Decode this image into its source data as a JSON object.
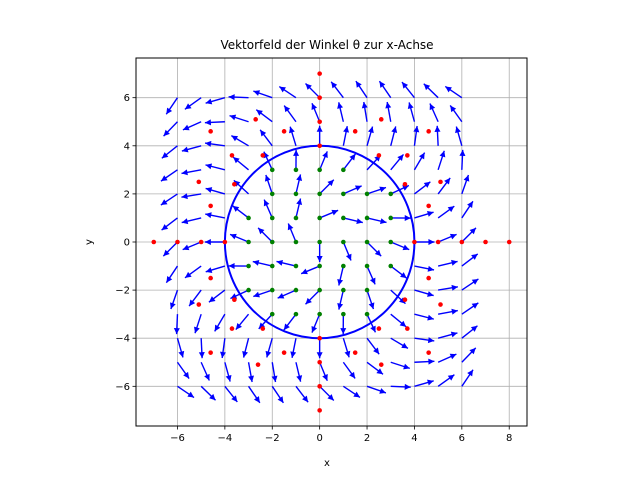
{
  "chart_data": {
    "type": "quiver",
    "title": "Vektorfeld der Winkel θ zur x-Achse",
    "xlabel": "x",
    "ylabel": "y",
    "xlim": [
      -7.75,
      8.75
    ],
    "ylim": [
      -7.65,
      7.65
    ],
    "xticks": [
      -6,
      -4,
      -2,
      0,
      2,
      4,
      6,
      8
    ],
    "yticks": [
      -6,
      -4,
      -2,
      0,
      2,
      4,
      6
    ],
    "grid": true,
    "colors": {
      "arrows": "#0000ff",
      "circle": "#0000ff",
      "inner_points": "#008000",
      "outer_points": "#ff0000",
      "grid": "#b0b0b0"
    },
    "vector_field": {
      "description_formula": "theta(x,y) = atan2(y,x) - pi/2*(1 - r/4)",
      "x_grid": [
        -6,
        -5,
        -4,
        -3,
        -2,
        -1,
        0,
        1,
        2,
        3,
        4,
        5,
        6
      ],
      "y_grid": [
        -6,
        -5,
        -4,
        -3,
        -2,
        -1,
        0,
        1,
        2,
        3,
        4,
        5,
        6
      ],
      "circle_radius": 4
    },
    "inner_points": [
      [
        0,
        0
      ],
      [
        1,
        0
      ],
      [
        2,
        0
      ],
      [
        3,
        0
      ],
      [
        -1,
        0
      ],
      [
        -2,
        0
      ],
      [
        -3,
        0
      ],
      [
        0,
        1
      ],
      [
        0,
        2
      ],
      [
        0,
        3
      ],
      [
        0,
        -1
      ],
      [
        0,
        -2
      ],
      [
        0,
        -3
      ],
      [
        1,
        1
      ],
      [
        2,
        1
      ],
      [
        3,
        1
      ],
      [
        -1,
        1
      ],
      [
        -2,
        1
      ],
      [
        -3,
        1
      ],
      [
        1,
        2
      ],
      [
        2,
        2
      ],
      [
        3,
        2
      ],
      [
        -1,
        2
      ],
      [
        -2,
        2
      ],
      [
        1,
        3
      ],
      [
        -1,
        3
      ],
      [
        -2,
        3
      ],
      [
        1,
        -1
      ],
      [
        2,
        -1
      ],
      [
        3,
        -1
      ],
      [
        -1,
        -1
      ],
      [
        -2,
        -1
      ],
      [
        -3,
        -1
      ],
      [
        1,
        -2
      ],
      [
        2,
        -2
      ],
      [
        -1,
        -2
      ],
      [
        -2,
        -2
      ],
      [
        -3,
        -2
      ],
      [
        1,
        -3
      ],
      [
        2,
        -3
      ],
      [
        -1,
        -3
      ],
      [
        -2,
        -3
      ]
    ],
    "outer_points": [
      [
        -7,
        0
      ],
      [
        -6,
        0
      ],
      [
        -5,
        0
      ],
      [
        -4,
        0
      ],
      [
        4,
        0
      ],
      [
        5,
        0
      ],
      [
        6,
        0
      ],
      [
        7,
        0
      ],
      [
        8,
        0
      ],
      [
        0,
        7
      ],
      [
        0,
        6
      ],
      [
        0,
        5
      ],
      [
        0,
        4
      ],
      [
        0,
        -4
      ],
      [
        0,
        -5
      ],
      [
        0,
        -6
      ],
      [
        0,
        -7
      ],
      [
        -4.6,
        4.6
      ],
      [
        -2.7,
        5.1
      ],
      [
        -1.5,
        4.6
      ],
      [
        1.5,
        4.6
      ],
      [
        2.6,
        5.1
      ],
      [
        4.6,
        4.6
      ],
      [
        -3.7,
        3.6
      ],
      [
        -2.4,
        3.6
      ],
      [
        2.5,
        3.6
      ],
      [
        3.7,
        3.6
      ],
      [
        -5.1,
        2.5
      ],
      [
        -3.6,
        2.4
      ],
      [
        3.6,
        2.4
      ],
      [
        5.1,
        2.5
      ],
      [
        -4.6,
        1.5
      ],
      [
        4.6,
        1.5
      ],
      [
        -4.6,
        -1.5
      ],
      [
        4.6,
        -1.5
      ],
      [
        -5.1,
        -2.6
      ],
      [
        -3.6,
        -2.4
      ],
      [
        3.6,
        -2.4
      ],
      [
        5.1,
        -2.6
      ],
      [
        -3.7,
        -3.6
      ],
      [
        -2.4,
        -3.6
      ],
      [
        2.5,
        -3.6
      ],
      [
        3.7,
        -3.6
      ],
      [
        -4.6,
        -4.6
      ],
      [
        -2.6,
        -5.1
      ],
      [
        -1.5,
        -4.6
      ],
      [
        1.5,
        -4.6
      ],
      [
        2.6,
        -5.1
      ],
      [
        4.6,
        -4.6
      ]
    ]
  }
}
